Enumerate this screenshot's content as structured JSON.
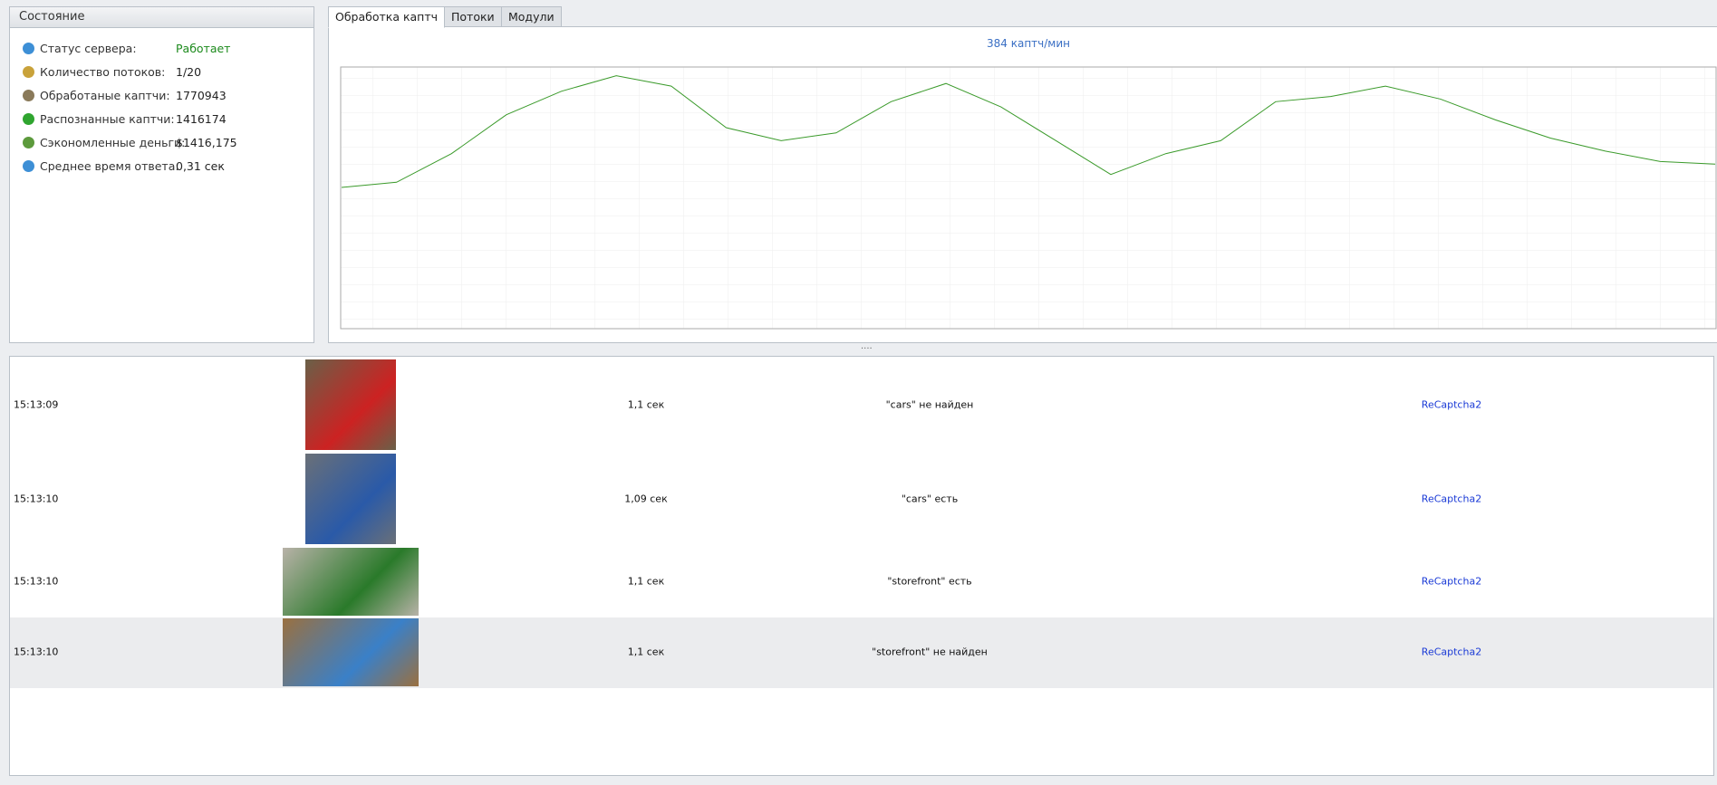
{
  "status": {
    "title": "Состояние",
    "rows": [
      {
        "label": "Статус сервера:",
        "value": "Работает"
      },
      {
        "label": "Количество потоков:",
        "value": "1/20"
      },
      {
        "label": "Обработаные каптчи:",
        "value": "1770943"
      },
      {
        "label": "Распознанные каптчи:",
        "value": "1416174"
      },
      {
        "label": "Сэкономленные деньги:",
        "value": "$1416,175"
      },
      {
        "label": "Среднее время ответа:",
        "value": "0,31 сек"
      }
    ]
  },
  "tabs": [
    "Обработка каптч",
    "Потоки",
    "Модули"
  ],
  "chart_data": {
    "type": "line",
    "title": "384 каптч/мин",
    "color": "#3a9a2a",
    "ylim": [
      0,
      100
    ],
    "values": [
      54,
      56,
      67,
      82,
      91,
      97,
      93,
      77,
      72,
      75,
      87,
      94,
      85,
      72,
      59,
      67,
      72,
      87,
      89,
      93,
      88,
      80,
      73,
      68,
      64,
      63
    ]
  },
  "log": {
    "rows": [
      {
        "time": "15:13:09",
        "duration": "1,1 сек",
        "result": "\"cars\" не найден",
        "module": "ReCaptcha2"
      },
      {
        "time": "15:13:10",
        "duration": "1,09 сек",
        "result": "\"cars\" есть",
        "module": "ReCaptcha2"
      },
      {
        "time": "15:13:10",
        "duration": "1,1 сек",
        "result": "\"storefront\" есть",
        "module": "ReCaptcha2"
      },
      {
        "time": "15:13:10",
        "duration": "1,1 сек",
        "result": "\"storefront\" не найден",
        "module": "ReCaptcha2"
      }
    ]
  }
}
